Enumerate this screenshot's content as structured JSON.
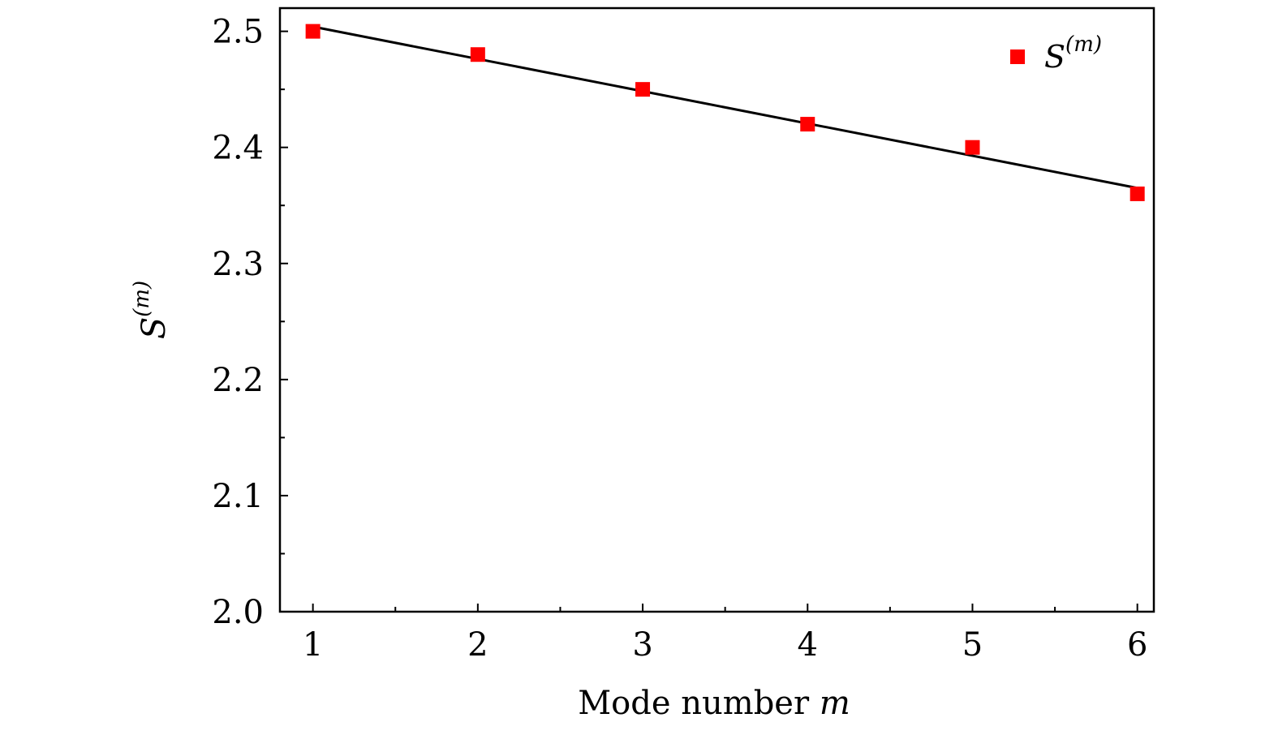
{
  "chart_data": {
    "type": "scatter",
    "xlabel": "Mode number m",
    "ylabel": "S(m)",
    "xlim": [
      0.8,
      6.1
    ],
    "ylim": [
      2.0,
      2.52
    ],
    "xticks": [
      1,
      2,
      3,
      4,
      5,
      6
    ],
    "xtick_labels": [
      "1",
      "2",
      "3",
      "4",
      "5",
      "6"
    ],
    "yticks": [
      2.0,
      2.1,
      2.2,
      2.3,
      2.4,
      2.5
    ],
    "ytick_labels": [
      "2.0",
      "2.1",
      "2.2",
      "2.3",
      "2.4",
      "2.5"
    ],
    "grid": false,
    "legend_position": "top-right",
    "series": [
      {
        "name": "S(m)",
        "marker": "square",
        "color": "#ff0000",
        "x": [
          1,
          2,
          3,
          4,
          5,
          6
        ],
        "y": [
          2.5,
          2.48,
          2.45,
          2.42,
          2.4,
          2.36
        ]
      }
    ],
    "fit_line": {
      "color": "#000000",
      "x": [
        1,
        6
      ],
      "y": [
        2.504,
        2.365
      ]
    }
  },
  "legend": {
    "label_base": "S",
    "label_sup": "(m)"
  },
  "axis_labels": {
    "x_text": "Mode number ",
    "x_var": "m",
    "y_base": "S",
    "y_sup": "(m)"
  }
}
